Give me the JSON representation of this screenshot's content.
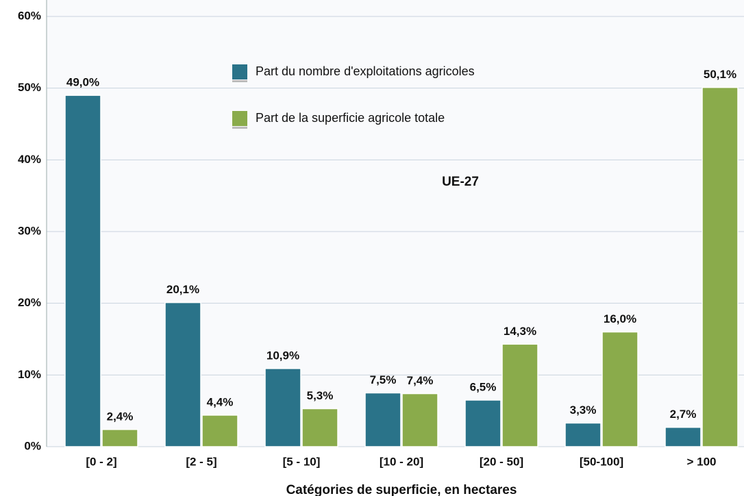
{
  "chart_data": {
    "type": "bar",
    "subtitle": "UE-27",
    "x_label": "Catégories de superficie, en hectares",
    "categories": [
      "[0 - 2]",
      "[2 - 5]",
      "[5 - 10]",
      "[10 - 20]",
      "[20 - 50]",
      "[50-100]",
      "> 100"
    ],
    "series": [
      {
        "name": "Part du nombre d'exploitations agricoles",
        "color": "#2a7389",
        "values": [
          49.0,
          20.1,
          10.9,
          7.5,
          6.5,
          3.3,
          2.7
        ],
        "value_labels": [
          "49,0%",
          "20,1%",
          "10,9%",
          "7,5%",
          "6,5%",
          "3,3%",
          "2,7%"
        ]
      },
      {
        "name": "Part de la superficie agricole totale",
        "color": "#8aab4b",
        "values": [
          2.4,
          4.4,
          5.3,
          7.4,
          14.3,
          16.0,
          50.1
        ],
        "value_labels": [
          "2,4%",
          "4,4%",
          "5,3%",
          "7,4%",
          "14,3%",
          "16,0%",
          "50,1%"
        ]
      }
    ],
    "ylim": [
      0,
      60
    ],
    "yticks": [
      {
        "value": 0,
        "label": "0%"
      },
      {
        "value": 10,
        "label": "10%"
      },
      {
        "value": 20,
        "label": "20%"
      },
      {
        "value": 30,
        "label": "30%"
      },
      {
        "value": 40,
        "label": "40%"
      },
      {
        "value": 50,
        "label": "50%"
      },
      {
        "value": 60,
        "label": "60%"
      }
    ],
    "grid": true,
    "legend": "top-center"
  }
}
